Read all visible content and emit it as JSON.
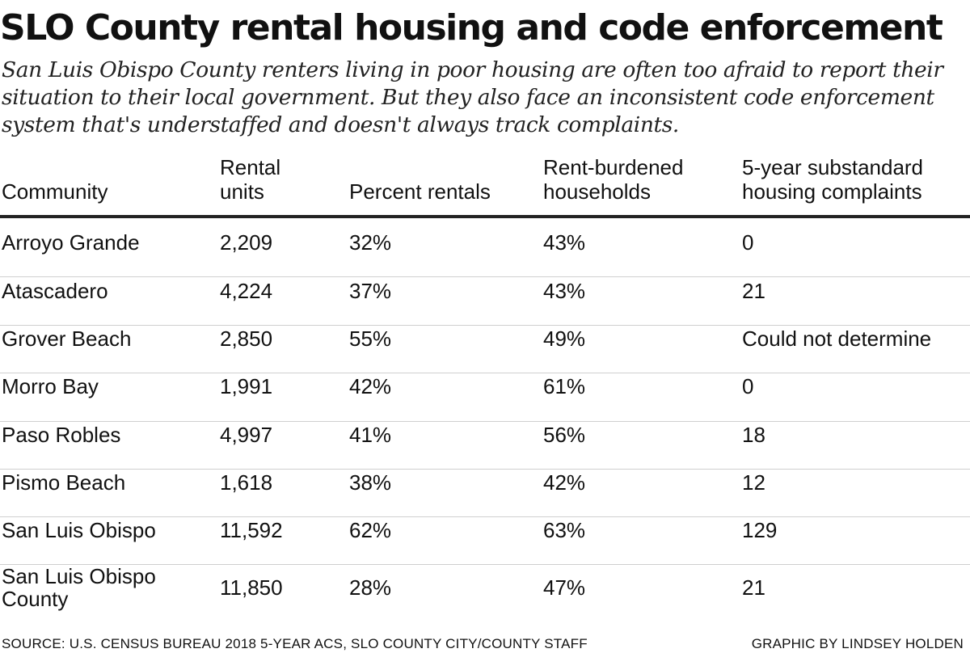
{
  "title": "SLO County rental housing and code enforcement",
  "subtitle": "San Luis Obispo County renters living in poor housing are often too afraid to report their situation to their local government. But they also face an inconsistent code enforcement system that's understaffed and doesn't always track complaints.",
  "columns": [
    {
      "line1": "",
      "line2": "Community"
    },
    {
      "line1": "Rental",
      "line2": "units"
    },
    {
      "line1": "",
      "line2": "Percent rentals"
    },
    {
      "line1": "Rent-burdened",
      "line2": "households"
    },
    {
      "line1": "5-year substandard",
      "line2": "housing complaints"
    }
  ],
  "rows": [
    {
      "community": "Arroyo Grande",
      "community2": "",
      "units": "2,209",
      "pct": "32%",
      "burden": "43%",
      "complaints": "0"
    },
    {
      "community": "Atascadero",
      "community2": "",
      "units": "4,224",
      "pct": "37%",
      "burden": "43%",
      "complaints": "21"
    },
    {
      "community": "Grover Beach",
      "community2": "",
      "units": "2,850",
      "pct": "55%",
      "burden": "49%",
      "complaints": "Could not determine"
    },
    {
      "community": "Morro Bay",
      "community2": "",
      "units": "1,991",
      "pct": "42%",
      "burden": "61%",
      "complaints": "0"
    },
    {
      "community": "Paso Robles",
      "community2": "",
      "units": "4,997",
      "pct": "41%",
      "burden": "56%",
      "complaints": "18"
    },
    {
      "community": "Pismo Beach",
      "community2": "",
      "units": "1,618",
      "pct": "38%",
      "burden": "42%",
      "complaints": "12"
    },
    {
      "community": "San Luis Obispo",
      "community2": "",
      "units": "11,592",
      "pct": "62%",
      "burden": "63%",
      "complaints": "129"
    },
    {
      "community": "San Luis Obispo",
      "community2": "County",
      "units": "11,850",
      "pct": "28%",
      "burden": "47%",
      "complaints": "21"
    }
  ],
  "chart_data": {
    "type": "table",
    "title": "SLO County rental housing and code enforcement",
    "columns": [
      "Community",
      "Rental units",
      "Percent rentals",
      "Rent-burdened households",
      "5-year substandard housing complaints"
    ],
    "rows": [
      [
        "Arroyo Grande",
        2209,
        "32%",
        "43%",
        "0"
      ],
      [
        "Atascadero",
        4224,
        "37%",
        "43%",
        "21"
      ],
      [
        "Grover Beach",
        2850,
        "55%",
        "49%",
        "Could not determine"
      ],
      [
        "Morro Bay",
        1991,
        "42%",
        "61%",
        "0"
      ],
      [
        "Paso Robles",
        4997,
        "41%",
        "56%",
        "18"
      ],
      [
        "Pismo Beach",
        1618,
        "38%",
        "42%",
        "12"
      ],
      [
        "San Luis Obispo",
        11592,
        "62%",
        "63%",
        "129"
      ],
      [
        "San Luis Obispo County",
        11850,
        "28%",
        "47%",
        "21"
      ]
    ]
  },
  "footer": {
    "source": "SOURCE: U.S. CENSUS BUREAU 2018 5-YEAR ACS, SLO COUNTY CITY/COUNTY STAFF",
    "credit": "GRAPHIC BY LINDSEY HOLDEN"
  }
}
